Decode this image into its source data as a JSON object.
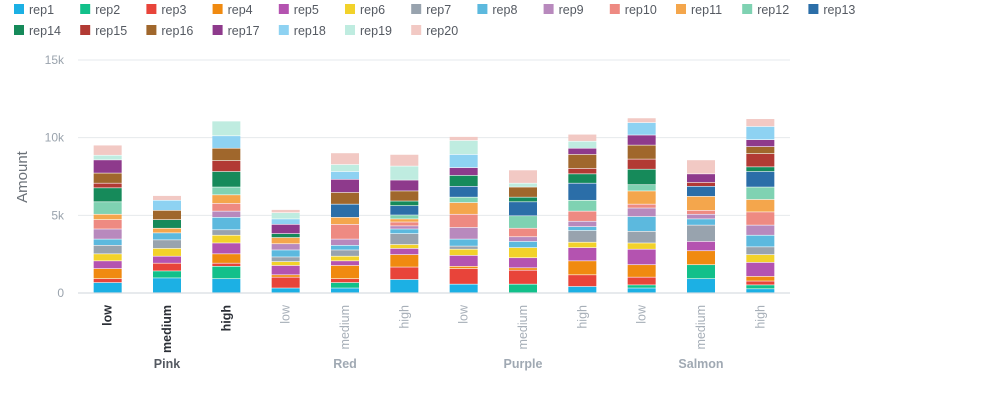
{
  "chart_data": {
    "type": "bar",
    "stacked": true,
    "title": "",
    "xlabel": "",
    "ylabel": "Amount",
    "ylim": [
      0,
      15000
    ],
    "yticks": [
      0,
      5000,
      10000,
      15000
    ],
    "ytick_labels": [
      "0",
      "5k",
      "10k",
      "15k"
    ],
    "grid": true,
    "legend_position": "top-left",
    "highlighted": [
      "Pink"
    ],
    "groups": [
      {
        "name": "Pink",
        "categories": [
          "low",
          "medium",
          "high"
        ]
      },
      {
        "name": "Red",
        "categories": [
          "low",
          "medium",
          "high"
        ]
      },
      {
        "name": "Purple",
        "categories": [
          "low",
          "medium",
          "high"
        ]
      },
      {
        "name": "Salmon",
        "categories": [
          "low",
          "medium",
          "high"
        ]
      }
    ],
    "colors": [
      "#1cb0e4",
      "#12c08a",
      "#e8443a",
      "#f08a10",
      "#b453b0",
      "#f2d22a",
      "#98a3ae",
      "#5cb9de",
      "#b889bd",
      "#ee8a82",
      "#f4a64c",
      "#7fd2b2",
      "#2b6ea8",
      "#168a5a",
      "#b23a34",
      "#a0672c",
      "#8e3a8c",
      "#8ed2f2",
      "#bfece0",
      "#f2c9c4"
    ],
    "series": [
      {
        "name": "rep1",
        "values": [
          650,
          950,
          900,
          300,
          300,
          850,
          550,
          0,
          400,
          300,
          900,
          250
        ]
      },
      {
        "name": "rep2",
        "values": [
          0,
          450,
          800,
          0,
          350,
          0,
          0,
          550,
          0,
          200,
          900,
          250
        ]
      },
      {
        "name": "rep3",
        "values": [
          250,
          500,
          200,
          700,
          250,
          800,
          1000,
          900,
          750,
          500,
          0,
          250
        ]
      },
      {
        "name": "rep4",
        "values": [
          650,
          0,
          600,
          150,
          850,
          800,
          150,
          150,
          900,
          800,
          900,
          300
        ]
      },
      {
        "name": "rep5",
        "values": [
          500,
          450,
          700,
          600,
          300,
          400,
          700,
          650,
          850,
          1000,
          600,
          900
        ]
      },
      {
        "name": "rep6",
        "values": [
          450,
          500,
          500,
          250,
          300,
          250,
          400,
          650,
          350,
          400,
          0,
          500
        ]
      },
      {
        "name": "rep7",
        "values": [
          550,
          550,
          350,
          300,
          400,
          700,
          200,
          0,
          750,
          750,
          1050,
          500
        ]
      },
      {
        "name": "rep8",
        "values": [
          400,
          450,
          800,
          450,
          300,
          300,
          450,
          400,
          250,
          950,
          400,
          750
        ]
      },
      {
        "name": "rep9",
        "values": [
          650,
          0,
          400,
          400,
          400,
          200,
          750,
          300,
          350,
          550,
          300,
          650
        ]
      },
      {
        "name": "rep10",
        "values": [
          600,
          0,
          500,
          0,
          950,
          250,
          850,
          550,
          650,
          250,
          250,
          850
        ]
      },
      {
        "name": "rep11",
        "values": [
          350,
          300,
          550,
          400,
          450,
          200,
          750,
          0,
          0,
          850,
          900,
          800
        ]
      },
      {
        "name": "rep12",
        "values": [
          800,
          0,
          500,
          0,
          0,
          250,
          350,
          800,
          700,
          400,
          0,
          800
        ]
      },
      {
        "name": "rep13",
        "values": [
          0,
          0,
          0,
          0,
          850,
          600,
          700,
          900,
          1100,
          0,
          650,
          1000
        ]
      },
      {
        "name": "rep14",
        "values": [
          900,
          550,
          1000,
          250,
          0,
          300,
          700,
          300,
          600,
          1000,
          0,
          300
        ]
      },
      {
        "name": "rep15",
        "values": [
          300,
          0,
          700,
          0,
          0,
          0,
          0,
          0,
          350,
          650,
          250,
          850
        ]
      },
      {
        "name": "rep16",
        "values": [
          650,
          600,
          800,
          0,
          750,
          650,
          0,
          650,
          900,
          900,
          0,
          450
        ]
      },
      {
        "name": "rep17",
        "values": [
          850,
          0,
          0,
          600,
          850,
          700,
          500,
          0,
          400,
          650,
          550,
          450
        ]
      },
      {
        "name": "rep18",
        "values": [
          0,
          650,
          800,
          350,
          500,
          0,
          850,
          0,
          0,
          800,
          0,
          850
        ]
      },
      {
        "name": "rep19",
        "values": [
          300,
          0,
          950,
          400,
          450,
          900,
          900,
          250,
          450,
          0,
          0,
          0
        ]
      },
      {
        "name": "rep20",
        "values": [
          650,
          300,
          0,
          200,
          750,
          750,
          250,
          850,
          450,
          300,
          900,
          500
        ]
      }
    ]
  }
}
